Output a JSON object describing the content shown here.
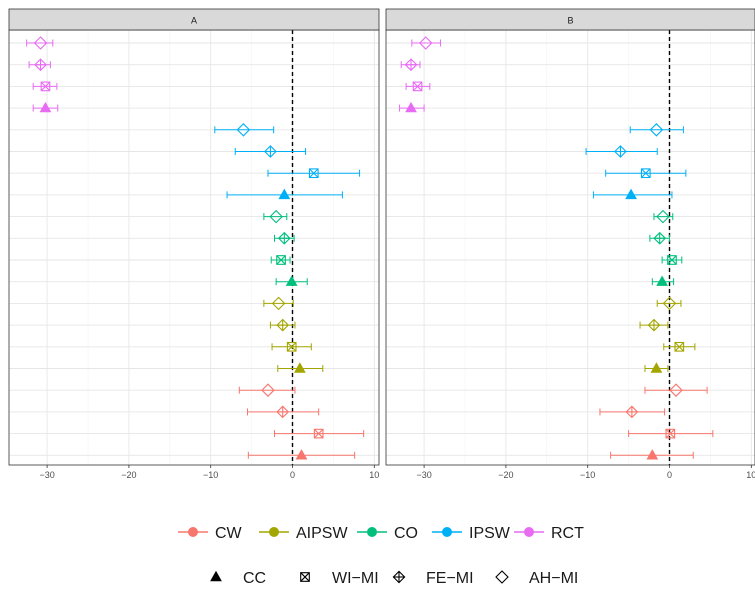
{
  "chart_data": {
    "type": "scatter",
    "subtype": "forest-plot-faceted",
    "panels": [
      "A",
      "B"
    ],
    "xlim": [
      -35,
      10
    ],
    "x_ticks": [
      -30,
      -20,
      -10,
      0,
      10
    ],
    "reference_line": 0,
    "grid": true,
    "legend_placement": "bottom",
    "methods": [
      {
        "name": "CW",
        "color": "#F8766D"
      },
      {
        "name": "AIPSW",
        "color": "#A3A500"
      },
      {
        "name": "CO",
        "color": "#00BF7D"
      },
      {
        "name": "IPSW",
        "color": "#00B0F6"
      },
      {
        "name": "RCT",
        "color": "#E76BF3"
      }
    ],
    "imputations": [
      {
        "name": "CC",
        "shape": "triangle"
      },
      {
        "name": "WI−MI",
        "shape": "boxed-x"
      },
      {
        "name": "FE−MI",
        "shape": "diamond-plus"
      },
      {
        "name": "AH−MI",
        "shape": "diamond"
      }
    ],
    "series": [
      {
        "panel": "A",
        "method": "RCT",
        "imputation": "AH−MI",
        "est": -30.8,
        "lo": -32.5,
        "hi": -29.3
      },
      {
        "panel": "A",
        "method": "RCT",
        "imputation": "FE−MI",
        "est": -30.8,
        "lo": -32.2,
        "hi": -29.6
      },
      {
        "panel": "A",
        "method": "RCT",
        "imputation": "WI−MI",
        "est": -30.2,
        "lo": -31.7,
        "hi": -28.8
      },
      {
        "panel": "A",
        "method": "RCT",
        "imputation": "CC",
        "est": -30.2,
        "lo": -31.7,
        "hi": -28.7
      },
      {
        "panel": "A",
        "method": "IPSW",
        "imputation": "AH−MI",
        "est": -6.0,
        "lo": -9.5,
        "hi": -2.3
      },
      {
        "panel": "A",
        "method": "IPSW",
        "imputation": "FE−MI",
        "est": -2.7,
        "lo": -7.0,
        "hi": 1.6
      },
      {
        "panel": "A",
        "method": "IPSW",
        "imputation": "WI−MI",
        "est": 2.6,
        "lo": -3.0,
        "hi": 8.2
      },
      {
        "panel": "A",
        "method": "IPSW",
        "imputation": "CC",
        "est": -1.0,
        "lo": -8.0,
        "hi": 6.1
      },
      {
        "panel": "A",
        "method": "CO",
        "imputation": "AH−MI",
        "est": -2.0,
        "lo": -3.5,
        "hi": -0.7
      },
      {
        "panel": "A",
        "method": "CO",
        "imputation": "FE−MI",
        "est": -1.0,
        "lo": -2.2,
        "hi": 0.2
      },
      {
        "panel": "A",
        "method": "CO",
        "imputation": "WI−MI",
        "est": -1.4,
        "lo": -2.6,
        "hi": -0.3
      },
      {
        "panel": "A",
        "method": "CO",
        "imputation": "CC",
        "est": -0.1,
        "lo": -2.0,
        "hi": 1.8
      },
      {
        "panel": "A",
        "method": "AIPSW",
        "imputation": "AH−MI",
        "est": -1.7,
        "lo": -3.5,
        "hi": 0.1
      },
      {
        "panel": "A",
        "method": "AIPSW",
        "imputation": "FE−MI",
        "est": -1.2,
        "lo": -2.7,
        "hi": 0.3
      },
      {
        "panel": "A",
        "method": "AIPSW",
        "imputation": "WI−MI",
        "est": -0.1,
        "lo": -2.5,
        "hi": 2.3
      },
      {
        "panel": "A",
        "method": "AIPSW",
        "imputation": "CC",
        "est": 0.9,
        "lo": -1.8,
        "hi": 3.7
      },
      {
        "panel": "A",
        "method": "CW",
        "imputation": "AH−MI",
        "est": -3.0,
        "lo": -6.5,
        "hi": 0.3
      },
      {
        "panel": "A",
        "method": "CW",
        "imputation": "FE−MI",
        "est": -1.2,
        "lo": -5.5,
        "hi": 3.2
      },
      {
        "panel": "A",
        "method": "CW",
        "imputation": "WI−MI",
        "est": 3.2,
        "lo": -2.2,
        "hi": 8.7
      },
      {
        "panel": "A",
        "method": "CW",
        "imputation": "CC",
        "est": 1.1,
        "lo": -5.4,
        "hi": 7.6
      },
      {
        "panel": "B",
        "method": "RCT",
        "imputation": "AH−MI",
        "est": -29.8,
        "lo": -31.5,
        "hi": -28.0
      },
      {
        "panel": "B",
        "method": "RCT",
        "imputation": "FE−MI",
        "est": -31.6,
        "lo": -32.8,
        "hi": -30.5
      },
      {
        "panel": "B",
        "method": "RCT",
        "imputation": "WI−MI",
        "est": -30.8,
        "lo": -32.2,
        "hi": -29.3
      },
      {
        "panel": "B",
        "method": "RCT",
        "imputation": "CC",
        "est": -31.6,
        "lo": -33.0,
        "hi": -30.0
      },
      {
        "panel": "B",
        "method": "IPSW",
        "imputation": "AH−MI",
        "est": -1.6,
        "lo": -4.8,
        "hi": 1.7
      },
      {
        "panel": "B",
        "method": "IPSW",
        "imputation": "FE−MI",
        "est": -6.0,
        "lo": -10.2,
        "hi": -1.5
      },
      {
        "panel": "B",
        "method": "IPSW",
        "imputation": "WI−MI",
        "est": -2.9,
        "lo": -7.8,
        "hi": 2.0
      },
      {
        "panel": "B",
        "method": "IPSW",
        "imputation": "CC",
        "est": -4.7,
        "lo": -9.3,
        "hi": 0.3
      },
      {
        "panel": "B",
        "method": "CO",
        "imputation": "AH−MI",
        "est": -0.8,
        "lo": -1.9,
        "hi": 0.4
      },
      {
        "panel": "B",
        "method": "CO",
        "imputation": "FE−MI",
        "est": -1.2,
        "lo": -2.4,
        "hi": 0.0
      },
      {
        "panel": "B",
        "method": "CO",
        "imputation": "WI−MI",
        "est": 0.3,
        "lo": -0.9,
        "hi": 1.5
      },
      {
        "panel": "B",
        "method": "CO",
        "imputation": "CC",
        "est": -0.9,
        "lo": -2.1,
        "hi": 0.5
      },
      {
        "panel": "B",
        "method": "AIPSW",
        "imputation": "AH−MI",
        "est": 0.0,
        "lo": -1.5,
        "hi": 1.4
      },
      {
        "panel": "B",
        "method": "AIPSW",
        "imputation": "FE−MI",
        "est": -1.9,
        "lo": -3.6,
        "hi": -0.2
      },
      {
        "panel": "B",
        "method": "AIPSW",
        "imputation": "WI−MI",
        "est": 1.2,
        "lo": -0.7,
        "hi": 3.1
      },
      {
        "panel": "B",
        "method": "AIPSW",
        "imputation": "CC",
        "est": -1.6,
        "lo": -3.0,
        "hi": -0.2
      },
      {
        "panel": "B",
        "method": "CW",
        "imputation": "AH−MI",
        "est": 0.8,
        "lo": -3.0,
        "hi": 4.6
      },
      {
        "panel": "B",
        "method": "CW",
        "imputation": "FE−MI",
        "est": -4.6,
        "lo": -8.5,
        "hi": -0.6
      },
      {
        "panel": "B",
        "method": "CW",
        "imputation": "WI−MI",
        "est": 0.1,
        "lo": -5.0,
        "hi": 5.3
      },
      {
        "panel": "B",
        "method": "CW",
        "imputation": "CC",
        "est": -2.1,
        "lo": -7.2,
        "hi": 2.9
      }
    ]
  }
}
